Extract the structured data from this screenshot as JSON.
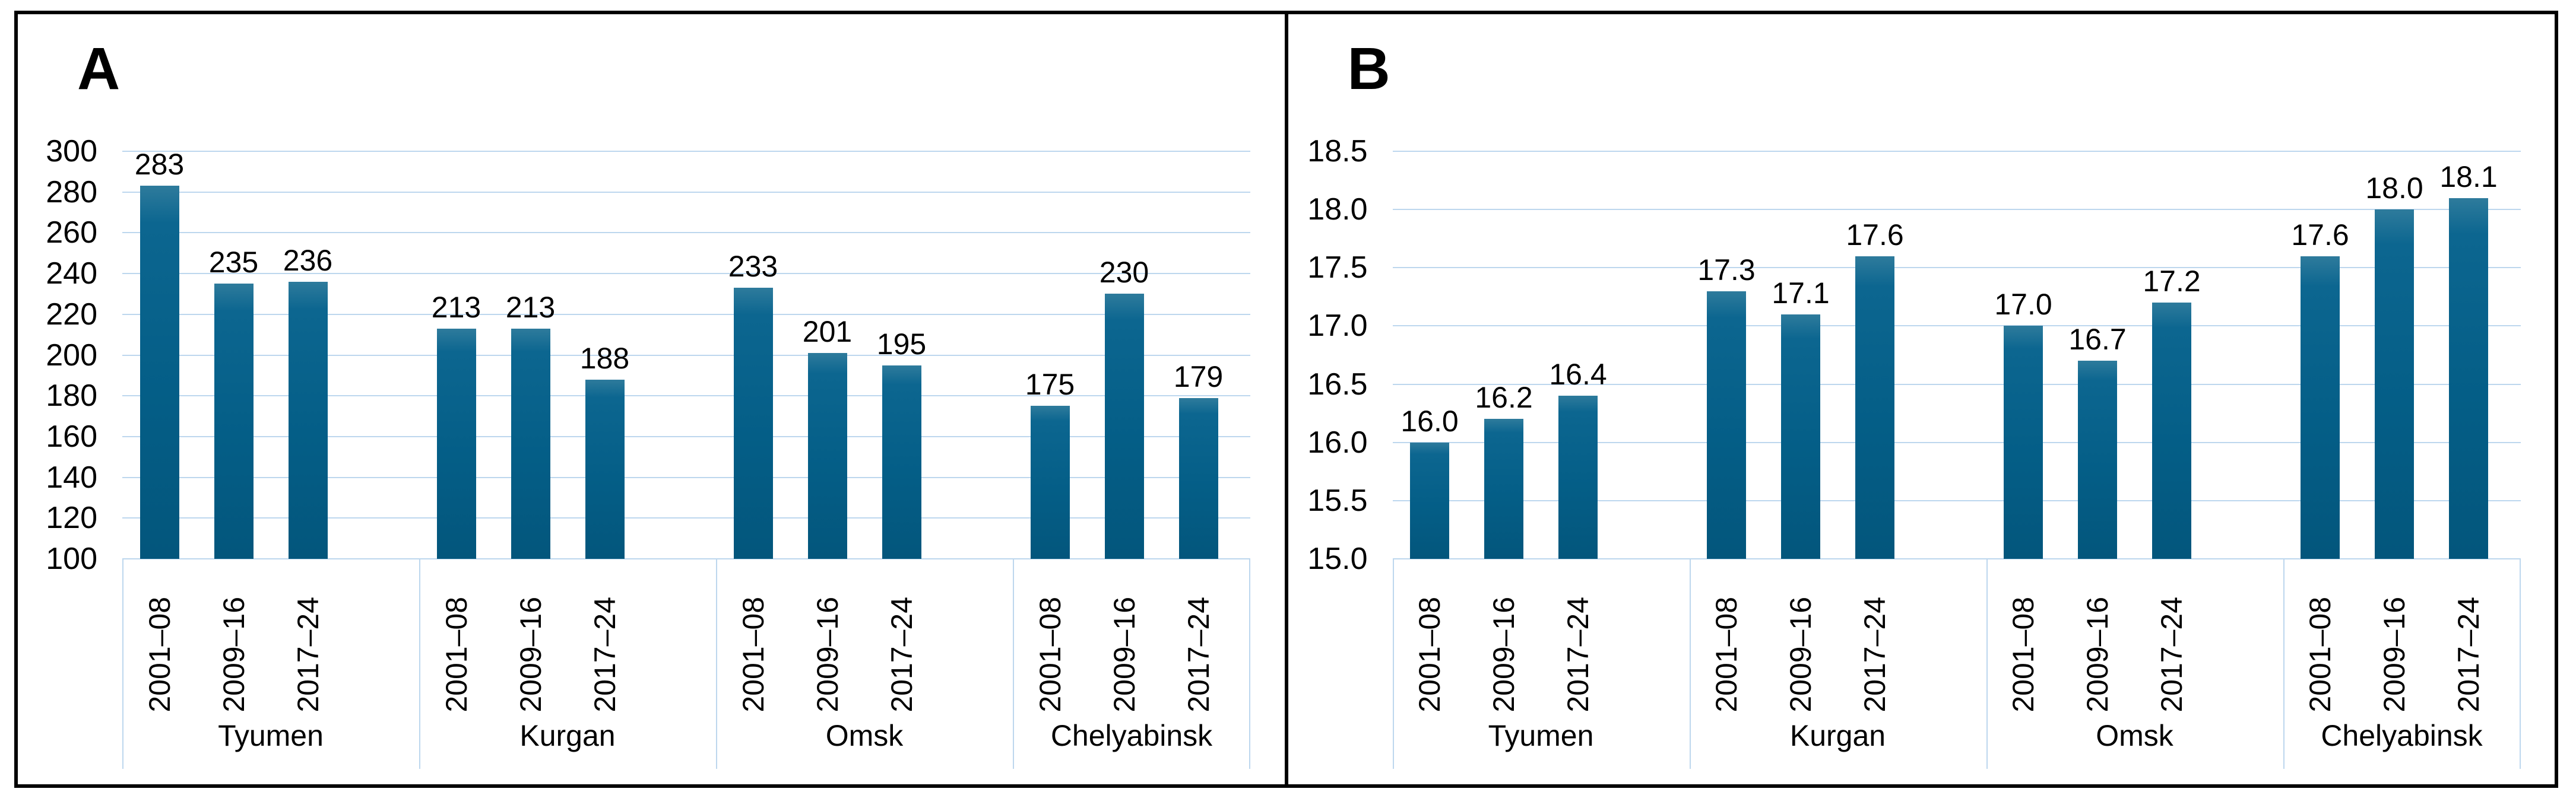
{
  "colors": {
    "bar_top": "#2e7b9c",
    "bar_mid": "#0c6690",
    "bar_main": "#045e87",
    "bar_deep": "#03567c",
    "gridline": "#bdd7ee",
    "axis_box": "#bdd7ee",
    "frame": "#000000",
    "text": "#000000",
    "background": "#ffffff"
  },
  "chart_data": [
    {
      "type": "bar",
      "panel_label": "A",
      "title": "",
      "xlabel": "",
      "ylabel": "",
      "grid": true,
      "legend": null,
      "ylim": [
        100,
        300
      ],
      "ytick_step": 20,
      "yticks": [
        "300",
        "280",
        "260",
        "240",
        "220",
        "200",
        "180",
        "160",
        "140",
        "120",
        "100"
      ],
      "categories": [
        "Tyumen",
        "Kurgan",
        "Omsk",
        "Chelyabinsk"
      ],
      "bar_x_labels": [
        "2001–08",
        "2009–16",
        "2017–24"
      ],
      "values": [
        [
          283,
          235,
          236
        ],
        [
          213,
          213,
          188
        ],
        [
          233,
          201,
          195
        ],
        [
          175,
          230,
          179
        ]
      ],
      "value_labels": [
        [
          "283",
          "235",
          "236"
        ],
        [
          "213",
          "213",
          "188"
        ],
        [
          "233",
          "201",
          "195"
        ],
        [
          "175",
          "230",
          "179"
        ]
      ]
    },
    {
      "type": "bar",
      "panel_label": "B",
      "title": "",
      "xlabel": "",
      "ylabel": "",
      "grid": true,
      "legend": null,
      "ylim": [
        15.0,
        18.5
      ],
      "ytick_step": 0.5,
      "yticks": [
        "18.5",
        "18.0",
        "17.5",
        "17.0",
        "16.5",
        "16.0",
        "15.5",
        "15.0"
      ],
      "categories": [
        "Tyumen",
        "Kurgan",
        "Omsk",
        "Chelyabinsk"
      ],
      "bar_x_labels": [
        "2001–08",
        "2009–16",
        "2017–24"
      ],
      "values": [
        [
          16.0,
          16.2,
          16.4
        ],
        [
          17.3,
          17.1,
          17.6
        ],
        [
          17.0,
          16.7,
          17.2
        ],
        [
          17.6,
          18.0,
          18.1
        ]
      ],
      "value_labels": [
        [
          "16.0",
          "16.2",
          "16.4"
        ],
        [
          "17.3",
          "17.1",
          "17.6"
        ],
        [
          "17.0",
          "16.7",
          "17.2"
        ],
        [
          "17.6",
          "18.0",
          "18.1"
        ]
      ]
    }
  ]
}
